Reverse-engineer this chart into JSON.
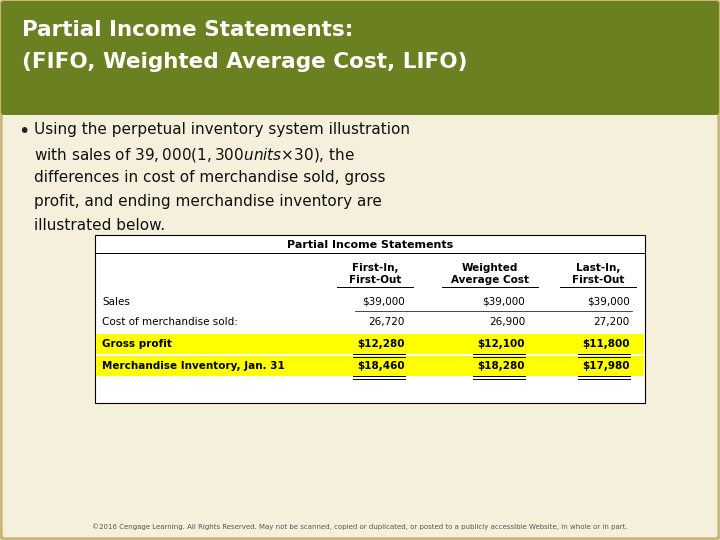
{
  "title_line1": "Partial Income Statements:",
  "title_line2": "(FIFO, Weighted Average Cost, LIFO)",
  "title_bg": "#6b8020",
  "title_fg": "#ffffff",
  "body_bg": "#f5f0dc",
  "bullet_text_lines": [
    "Using the perpetual inventory system illustration",
    "with sales of $39,000 (1,300 units × $30), the",
    "differences in cost of merchandise sold, gross",
    "profit, and ending merchandise inventory are",
    "illustrated below."
  ],
  "table_title": "Partial Income Statements",
  "col_headers_line1": [
    "",
    "First-In,",
    "Weighted",
    "Last-In,"
  ],
  "col_headers_line2": [
    "",
    "First-Out",
    "Average Cost",
    "First-Out"
  ],
  "rows": [
    {
      "label": "Sales",
      "fifo": "$39,000",
      "wac": "$39,000",
      "lifo": "$39,000",
      "highlight": false
    },
    {
      "label": "Cost of merchandise sold:",
      "fifo": "26,720",
      "wac": "26,900",
      "lifo": "27,200",
      "highlight": false
    },
    {
      "label": "Gross profit",
      "fifo": "$12,280",
      "wac": "$12,100",
      "lifo": "$11,800",
      "highlight": true
    },
    {
      "label": "Merchandise Inventory, Jan. 31",
      "fifo": "$18,460",
      "wac": "$18,280",
      "lifo": "$17,980",
      "highlight": true
    }
  ],
  "highlight_color": "#ffff00",
  "footer_text": "©2016 Cengage Learning. All Rights Reserved. May not be scanned, copied or duplicated, or posted to a publicly accessible Website, in whole or in part.",
  "outer_border_color": "#c8b87a",
  "table_border_color": "#000000"
}
